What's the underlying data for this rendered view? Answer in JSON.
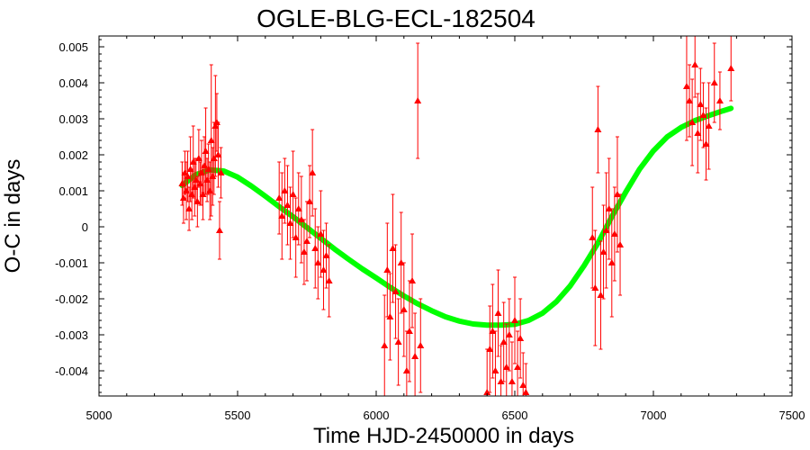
{
  "chart_data": {
    "type": "scatter",
    "title": "OGLE-BLG-ECL-182504",
    "xlabel": "Time HJD-2450000 in days",
    "ylabel": "O-C in days",
    "xlim": [
      5000,
      7500
    ],
    "ylim": [
      -0.0047,
      0.0053
    ],
    "xticks": [
      "5000",
      "5500",
      "6000",
      "6500",
      "7000",
      "7500"
    ],
    "yticks": [
      "-0.004",
      "-0.003",
      "-0.002",
      "-0.001",
      "0",
      "0.001",
      "0.002",
      "0.003",
      "0.004",
      "0.005"
    ],
    "grid": false,
    "colors": {
      "points": "#ff0000",
      "fit": "#00ff00",
      "axes": "#000000"
    },
    "series": [
      {
        "marker": "triangle",
        "x": [
          5300,
          5305,
          5310,
          5315,
          5320,
          5325,
          5330,
          5335,
          5340,
          5345,
          5350,
          5355,
          5360,
          5365,
          5370,
          5375,
          5380,
          5385,
          5390,
          5395,
          5400,
          5405,
          5410,
          5415,
          5420,
          5425,
          5430,
          5435,
          5440,
          5650,
          5660,
          5670,
          5680,
          5690,
          5700,
          5710,
          5720,
          5730,
          5740,
          5750,
          5760,
          5770,
          5780,
          5790,
          5800,
          5810,
          5820,
          5830,
          6030,
          6040,
          6050,
          6060,
          6070,
          6080,
          6090,
          6100,
          6110,
          6120,
          6130,
          6140,
          6150,
          6160,
          6400,
          6410,
          6420,
          6430,
          6440,
          6450,
          6460,
          6470,
          6480,
          6490,
          6500,
          6510,
          6520,
          6530,
          6540,
          6780,
          6790,
          6800,
          6810,
          6820,
          6830,
          6840,
          6850,
          6860,
          6870,
          6880,
          7120,
          7130,
          7140,
          7150,
          7160,
          7170,
          7180,
          7190,
          7200,
          7220,
          7240,
          7280
        ],
        "y": [
          0.0012,
          0.0008,
          0.0015,
          0.001,
          0.0014,
          0.0005,
          0.0016,
          0.0009,
          0.0018,
          0.0011,
          0.0013,
          0.0007,
          0.0019,
          0.0012,
          0.0015,
          0.0009,
          0.0017,
          0.0021,
          0.0013,
          0.0016,
          0.001,
          0.0024,
          0.0014,
          0.0019,
          0.0028,
          0.0029,
          0.002,
          -0.0001,
          0.0015,
          0.0008,
          0.0003,
          0.001,
          0.0006,
          0.0001,
          0.0009,
          -0.0003,
          0.0005,
          0.0002,
          -0.0007,
          -0.0004,
          0.0007,
          0.0015,
          -0.0006,
          -0.001,
          -0.0002,
          -0.0012,
          -0.0008,
          -0.0015,
          -0.0033,
          -0.0012,
          -0.0025,
          -0.0006,
          -0.0018,
          -0.0032,
          -0.001,
          -0.0023,
          -0.004,
          -0.0029,
          -0.0015,
          -0.0036,
          0.0035,
          -0.0033,
          -0.0046,
          -0.0034,
          -0.0029,
          -0.004,
          -0.0024,
          -0.0043,
          -0.0032,
          -0.0039,
          -0.003,
          -0.0043,
          -0.0026,
          -0.0039,
          -0.0031,
          -0.0044,
          -0.0046,
          -0.0003,
          -0.0017,
          0.0027,
          -0.0019,
          -0.0007,
          -0.0001,
          0.0005,
          -0.001,
          -0.0002,
          0.0009,
          -0.0005,
          0.0039,
          0.0035,
          0.0029,
          0.0045,
          0.0026,
          0.0034,
          0.0031,
          0.0023,
          0.0028,
          0.004,
          0.0035,
          0.0044
        ],
        "yerr": [
          0.0006,
          0.0007,
          0.0006,
          0.0008,
          0.0007,
          0.0006,
          0.0009,
          0.0007,
          0.001,
          0.0008,
          0.0006,
          0.0007,
          0.0008,
          0.0006,
          0.0009,
          0.0007,
          0.0008,
          0.0012,
          0.0006,
          0.0007,
          0.0008,
          0.0021,
          0.0008,
          0.001,
          0.0014,
          0.0008,
          0.0009,
          0.0008,
          0.0007,
          0.001,
          0.0012,
          0.0009,
          0.0011,
          0.001,
          0.0012,
          0.0011,
          0.001,
          0.0012,
          0.0009,
          0.0011,
          0.001,
          0.0012,
          0.0011,
          0.001,
          0.0012,
          0.0011,
          0.0009,
          0.001,
          0.0014,
          0.0013,
          0.0012,
          0.0015,
          0.0013,
          0.0012,
          0.0014,
          0.0013,
          0.0011,
          0.0014,
          0.0013,
          0.0012,
          0.0016,
          0.0013,
          0.0012,
          0.0012,
          0.0013,
          0.0011,
          0.0012,
          0.001,
          0.0011,
          0.0012,
          0.001,
          0.0011,
          0.0012,
          0.001,
          0.0011,
          0.0009,
          0.0008,
          0.0014,
          0.0016,
          0.0012,
          0.0015,
          0.0013,
          0.0016,
          0.0014,
          0.0015,
          0.0013,
          0.0016,
          0.0014,
          0.0015,
          0.001,
          0.0012,
          0.0009,
          0.0011,
          0.001,
          0.0009,
          0.001,
          0.0012,
          0.0011,
          0.0008,
          0.0009
        ]
      },
      {
        "type": "line",
        "x": [
          5300,
          5350,
          5400,
          5450,
          5500,
          5550,
          5600,
          5650,
          5700,
          5750,
          5800,
          5850,
          5900,
          5950,
          6000,
          6050,
          6100,
          6150,
          6200,
          6250,
          6300,
          6350,
          6400,
          6450,
          6500,
          6550,
          6600,
          6650,
          6700,
          6750,
          6800,
          6850,
          6900,
          6950,
          7000,
          7050,
          7100,
          7150,
          7200,
          7250,
          7280
        ],
        "y": [
          0.00115,
          0.00145,
          0.00158,
          0.00155,
          0.00138,
          0.00113,
          0.00085,
          0.00056,
          0.00028,
          -2e-05,
          -0.00032,
          -0.00062,
          -0.0009,
          -0.00117,
          -0.00142,
          -0.00168,
          -0.00192,
          -0.00214,
          -0.00233,
          -0.0025,
          -0.00262,
          -0.0027,
          -0.00273,
          -0.00273,
          -0.00271,
          -0.0026,
          -0.0024,
          -0.00208,
          -0.00164,
          -0.00108,
          -0.00045,
          0.00028,
          0.00096,
          0.0016,
          0.00211,
          0.0025,
          0.00276,
          0.00295,
          0.00309,
          0.00322,
          0.00329
        ]
      }
    ]
  }
}
